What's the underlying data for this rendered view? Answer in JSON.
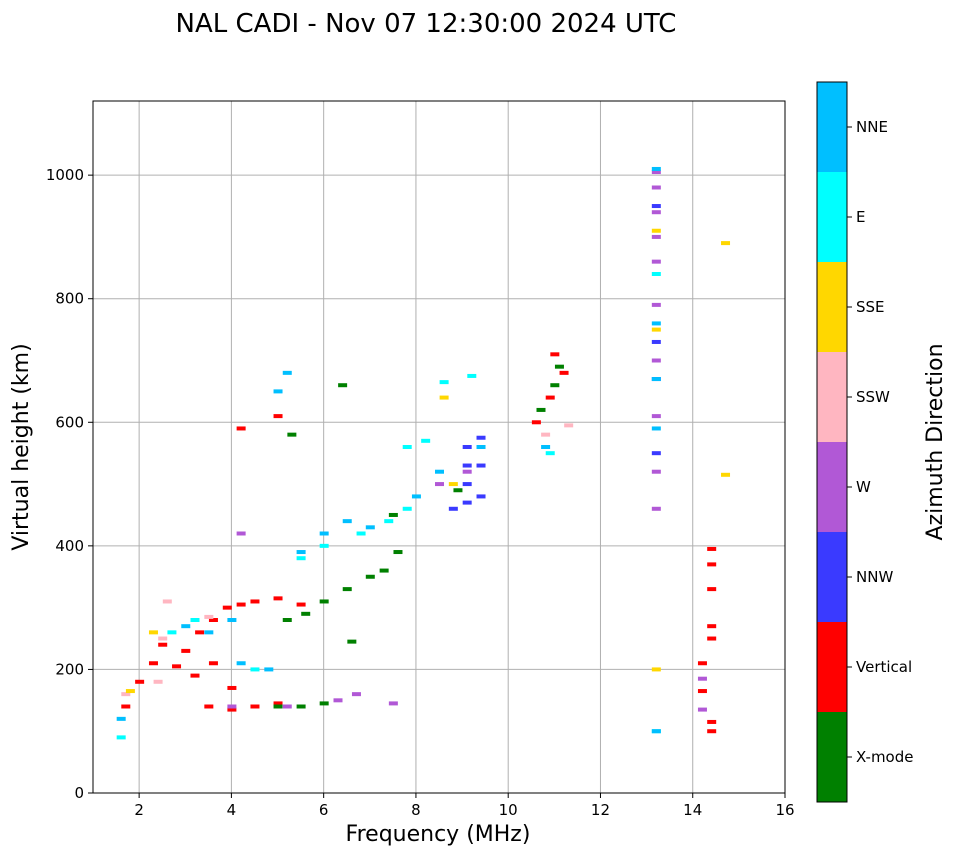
{
  "chart_data": {
    "type": "scatter",
    "title": "NAL CADI - Nov 07 12:30:00 2024 UTC",
    "xlabel": "Frequency (MHz)",
    "ylabel": "Virtual height (km)",
    "xlim": [
      1,
      16
    ],
    "ylim": [
      0,
      1120
    ],
    "xticks": [
      2,
      4,
      6,
      8,
      10,
      12,
      14,
      16
    ],
    "yticks": [
      0,
      200,
      400,
      600,
      800,
      1000
    ],
    "grid": true,
    "colorbar": {
      "title": "Azimuth Direction",
      "categories": [
        {
          "name": "X-mode",
          "color": "#008000"
        },
        {
          "name": "Vertical",
          "color": "#ff0000"
        },
        {
          "name": "NNW",
          "color": "#3a3aff"
        },
        {
          "name": "W",
          "color": "#b158d6"
        },
        {
          "name": "SSW",
          "color": "#ffb6c1"
        },
        {
          "name": "SSE",
          "color": "#ffd700"
        },
        {
          "name": "E",
          "color": "#00ffff"
        },
        {
          "name": "NNE",
          "color": "#00bfff"
        }
      ]
    },
    "series": [
      {
        "name": "Vertical",
        "points": [
          [
            1.7,
            140
          ],
          [
            2.0,
            180
          ],
          [
            2.3,
            210
          ],
          [
            2.5,
            240
          ],
          [
            2.8,
            205
          ],
          [
            3.0,
            230
          ],
          [
            3.3,
            260
          ],
          [
            3.6,
            280
          ],
          [
            3.9,
            300
          ],
          [
            4.2,
            305
          ],
          [
            4.5,
            310
          ],
          [
            5.0,
            315
          ],
          [
            5.5,
            305
          ],
          [
            3.5,
            140
          ],
          [
            4.0,
            135
          ],
          [
            4.5,
            140
          ],
          [
            5.0,
            145
          ],
          [
            3.2,
            190
          ],
          [
            3.6,
            210
          ],
          [
            4.0,
            170
          ],
          [
            5.0,
            610
          ],
          [
            4.2,
            590
          ],
          [
            10.6,
            600
          ],
          [
            10.9,
            640
          ],
          [
            11.0,
            710
          ],
          [
            11.2,
            680
          ],
          [
            14.4,
            100
          ],
          [
            14.4,
            115
          ],
          [
            14.4,
            250
          ],
          [
            14.4,
            270
          ],
          [
            14.4,
            330
          ],
          [
            14.4,
            370
          ],
          [
            14.4,
            395
          ],
          [
            14.2,
            165
          ],
          [
            14.2,
            210
          ]
        ]
      },
      {
        "name": "X-mode",
        "points": [
          [
            5.0,
            140
          ],
          [
            5.5,
            140
          ],
          [
            6.0,
            145
          ],
          [
            5.2,
            280
          ],
          [
            5.6,
            290
          ],
          [
            6.0,
            310
          ],
          [
            6.5,
            330
          ],
          [
            7.0,
            350
          ],
          [
            7.3,
            360
          ],
          [
            7.6,
            390
          ],
          [
            6.6,
            245
          ],
          [
            5.3,
            580
          ],
          [
            6.4,
            660
          ],
          [
            10.7,
            620
          ],
          [
            11.0,
            660
          ],
          [
            11.1,
            690
          ],
          [
            8.9,
            490
          ],
          [
            7.5,
            450
          ]
        ]
      },
      {
        "name": "NNW",
        "points": [
          [
            9.1,
            470
          ],
          [
            9.1,
            500
          ],
          [
            9.1,
            530
          ],
          [
            9.1,
            560
          ],
          [
            9.4,
            480
          ],
          [
            9.4,
            530
          ],
          [
            9.4,
            575
          ],
          [
            8.8,
            460
          ],
          [
            13.2,
            550
          ],
          [
            13.2,
            670
          ],
          [
            13.2,
            730
          ],
          [
            13.2,
            950
          ]
        ]
      },
      {
        "name": "W",
        "points": [
          [
            4.0,
            140
          ],
          [
            5.2,
            140
          ],
          [
            6.3,
            150
          ],
          [
            6.7,
            160
          ],
          [
            4.2,
            420
          ],
          [
            7.5,
            145
          ],
          [
            13.2,
            460
          ],
          [
            13.2,
            520
          ],
          [
            13.2,
            610
          ],
          [
            13.2,
            700
          ],
          [
            13.2,
            790
          ],
          [
            13.2,
            860
          ],
          [
            13.2,
            900
          ],
          [
            13.2,
            940
          ],
          [
            13.2,
            980
          ],
          [
            13.2,
            1005
          ],
          [
            14.2,
            185
          ],
          [
            14.2,
            135
          ],
          [
            9.1,
            520
          ],
          [
            8.5,
            500
          ]
        ]
      },
      {
        "name": "SSW",
        "points": [
          [
            2.4,
            180
          ],
          [
            2.5,
            250
          ],
          [
            2.6,
            310
          ],
          [
            1.7,
            160
          ],
          [
            3.5,
            285
          ],
          [
            10.8,
            580
          ],
          [
            11.3,
            595
          ]
        ]
      },
      {
        "name": "SSE",
        "points": [
          [
            2.3,
            260
          ],
          [
            1.8,
            165
          ],
          [
            8.6,
            640
          ],
          [
            13.2,
            200
          ],
          [
            13.2,
            750
          ],
          [
            13.2,
            910
          ],
          [
            14.7,
            890
          ],
          [
            14.7,
            515
          ],
          [
            8.8,
            500
          ]
        ]
      },
      {
        "name": "E",
        "points": [
          [
            1.6,
            90
          ],
          [
            2.7,
            260
          ],
          [
            3.2,
            280
          ],
          [
            4.5,
            200
          ],
          [
            5.5,
            380
          ],
          [
            6.0,
            400
          ],
          [
            6.8,
            420
          ],
          [
            7.4,
            440
          ],
          [
            7.8,
            460
          ],
          [
            8.6,
            665
          ],
          [
            9.2,
            675
          ],
          [
            8.2,
            570
          ],
          [
            7.8,
            560
          ],
          [
            13.2,
            100
          ],
          [
            13.2,
            840
          ],
          [
            10.9,
            550
          ]
        ]
      },
      {
        "name": "NNE",
        "points": [
          [
            1.6,
            120
          ],
          [
            3.0,
            270
          ],
          [
            3.5,
            260
          ],
          [
            4.0,
            280
          ],
          [
            4.2,
            210
          ],
          [
            4.8,
            200
          ],
          [
            5.0,
            650
          ],
          [
            5.2,
            680
          ],
          [
            5.5,
            390
          ],
          [
            6.0,
            420
          ],
          [
            6.5,
            440
          ],
          [
            7.0,
            430
          ],
          [
            8.0,
            480
          ],
          [
            8.5,
            520
          ],
          [
            9.4,
            560
          ],
          [
            13.2,
            100
          ],
          [
            13.2,
            590
          ],
          [
            13.2,
            670
          ],
          [
            13.2,
            760
          ],
          [
            13.2,
            1010
          ],
          [
            10.8,
            560
          ]
        ]
      }
    ]
  }
}
